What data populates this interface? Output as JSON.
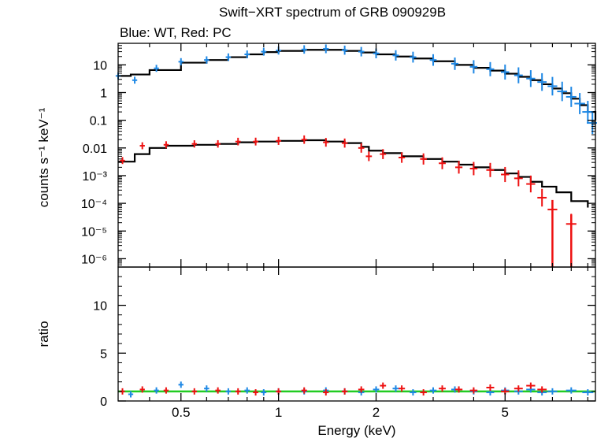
{
  "title": "Swift−XRT spectrum of GRB 090929B",
  "subtitle": "Blue: WT, Red: PC",
  "colors": {
    "wt": "#1e88e5",
    "pc": "#ee1111",
    "model": "#000000",
    "ratio_line": "#22cc22"
  },
  "chart_data": [
    {
      "type": "scatter",
      "panel": "spectrum",
      "title": "Swift−XRT spectrum of GRB 090929B",
      "subtitle": "Blue: WT, Red: PC",
      "xlabel": "Energy (keV)",
      "ylabel": "counts s⁻¹ keV⁻¹",
      "xscale": "log",
      "yscale": "log",
      "xlim": [
        0.32,
        9.5
      ],
      "ylim": [
        5e-07,
        60
      ],
      "ytick_labels": [
        "10",
        "1",
        "0.1",
        "0.01",
        "10⁻³",
        "10⁻⁴",
        "10⁻⁵",
        "10⁻⁶"
      ],
      "ytick_values": [
        10,
        1,
        0.1,
        0.01,
        0.001,
        0.0001,
        1e-05,
        1e-06
      ],
      "series": [
        {
          "name": "Blue: WT",
          "color": "#1e88e5",
          "x": [
            0.32,
            0.36,
            0.42,
            0.5,
            0.6,
            0.7,
            0.8,
            0.9,
            1.0,
            1.2,
            1.4,
            1.6,
            1.8,
            2.0,
            2.3,
            2.6,
            3.0,
            3.5,
            4.0,
            4.5,
            5.0,
            5.5,
            6.0,
            6.5,
            7.0,
            7.5,
            8.0,
            8.5,
            9.0,
            9.3
          ],
          "y": [
            4.0,
            2.8,
            7.5,
            13,
            15,
            19,
            24,
            30,
            33,
            36,
            38,
            34,
            30,
            26,
            22,
            19,
            15,
            11,
            8.5,
            7.0,
            5.5,
            4.2,
            3.2,
            2.4,
            1.7,
            1.1,
            0.7,
            0.4,
            0.2,
            0.08
          ]
        },
        {
          "name": "Red: PC",
          "color": "#ee1111",
          "x": [
            0.33,
            0.38,
            0.45,
            0.55,
            0.65,
            0.75,
            0.85,
            1.0,
            1.2,
            1.4,
            1.6,
            1.8,
            1.9,
            2.1,
            2.4,
            2.8,
            3.2,
            3.6,
            4.0,
            4.5,
            5.0,
            5.5,
            6.0,
            6.5,
            7.0,
            8.0
          ],
          "y": [
            0.0035,
            0.012,
            0.013,
            0.014,
            0.014,
            0.017,
            0.017,
            0.018,
            0.02,
            0.016,
            0.015,
            0.01,
            0.005,
            0.006,
            0.0045,
            0.004,
            0.0028,
            0.002,
            0.0018,
            0.0016,
            0.0011,
            0.0008,
            0.0005,
            0.00016,
            6e-05,
            1.8e-05
          ]
        }
      ],
      "models": [
        {
          "x": [
            0.32,
            0.35,
            0.4,
            0.5,
            0.6,
            0.7,
            0.8,
            0.9,
            1.0,
            1.2,
            1.4,
            1.6,
            1.8,
            2.0,
            2.3,
            2.6,
            3.0,
            3.5,
            4.0,
            4.5,
            5.0,
            5.5,
            6.0,
            6.5,
            7.0,
            7.5,
            8.0,
            8.5,
            9.0,
            9.5
          ],
          "y": [
            4.0,
            4.5,
            6.5,
            12,
            15,
            19,
            24,
            29,
            32,
            35,
            35,
            32,
            28,
            24,
            20,
            17,
            13.5,
            10,
            7.8,
            6.2,
            4.8,
            3.7,
            2.8,
            2.0,
            1.4,
            0.95,
            0.6,
            0.35,
            0.2,
            0.1
          ]
        },
        {
          "x": [
            0.32,
            0.36,
            0.4,
            0.45,
            0.55,
            0.65,
            0.75,
            0.85,
            1.0,
            1.2,
            1.4,
            1.6,
            1.8,
            1.9,
            2.1,
            2.4,
            2.8,
            3.2,
            3.6,
            4.0,
            4.5,
            5.0,
            5.5,
            6.0,
            6.5,
            7.2,
            8.0,
            9.0
          ],
          "y": [
            0.0032,
            0.006,
            0.01,
            0.012,
            0.013,
            0.014,
            0.016,
            0.017,
            0.018,
            0.019,
            0.017,
            0.015,
            0.011,
            0.008,
            0.0065,
            0.005,
            0.004,
            0.0032,
            0.0025,
            0.002,
            0.0016,
            0.0012,
            0.0009,
            0.0006,
            0.0004,
            0.00025,
            0.00012,
            7e-05
          ]
        }
      ]
    },
    {
      "type": "scatter",
      "panel": "ratio",
      "xlabel": "Energy (keV)",
      "ylabel": "ratio",
      "xscale": "log",
      "xlim": [
        0.32,
        9.5
      ],
      "ylim": [
        0,
        14
      ],
      "xtick_labels": [
        "0.5",
        "1",
        "2",
        "5"
      ],
      "xtick_values": [
        0.5,
        1,
        2,
        5
      ],
      "ytick_labels": [
        "0",
        "5",
        "10"
      ],
      "ytick_values": [
        0,
        5,
        10
      ],
      "reference_line": 1,
      "series": [
        {
          "name": "Blue: WT",
          "color": "#1e88e5",
          "x": [
            0.35,
            0.42,
            0.5,
            0.6,
            0.7,
            0.8,
            0.9,
            1.0,
            1.2,
            1.4,
            1.6,
            1.8,
            2.0,
            2.3,
            2.6,
            3.0,
            3.5,
            4.0,
            4.5,
            5.0,
            5.5,
            6.0,
            6.5,
            7.0,
            8.0,
            9.0
          ],
          "y": [
            0.7,
            1.1,
            1.7,
            1.3,
            1.0,
            1.1,
            0.9,
            1.0,
            1.0,
            1.1,
            1.0,
            0.9,
            1.2,
            1.3,
            0.9,
            1.1,
            1.2,
            1.0,
            0.9,
            1.1,
            1.0,
            1.2,
            0.9,
            1.0,
            1.1,
            0.9
          ]
        },
        {
          "name": "Red: PC",
          "color": "#ee1111",
          "x": [
            0.33,
            0.38,
            0.45,
            0.55,
            0.65,
            0.75,
            0.85,
            1.0,
            1.2,
            1.4,
            1.6,
            1.8,
            2.1,
            2.4,
            2.8,
            3.2,
            3.6,
            4.0,
            4.5,
            5.0,
            5.5,
            6.0,
            6.5
          ],
          "y": [
            1.0,
            1.2,
            1.1,
            1.0,
            1.1,
            1.0,
            0.9,
            1.0,
            1.1,
            0.9,
            1.0,
            1.2,
            1.6,
            1.3,
            0.9,
            1.3,
            1.2,
            1.1,
            1.4,
            1.0,
            1.3,
            1.6,
            1.2
          ]
        }
      ]
    }
  ]
}
